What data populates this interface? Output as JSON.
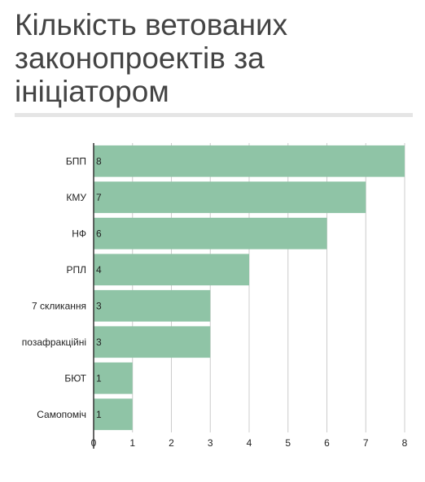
{
  "chart_data": {
    "type": "bar",
    "orientation": "horizontal",
    "title": "Кількість ветованих законопроектів за ініціатором",
    "categories": [
      "БПП",
      "КМУ",
      "НФ",
      "РПЛ",
      "7 скликання",
      "позафракційні",
      "БЮТ",
      "Самопоміч"
    ],
    "values": [
      8,
      7,
      6,
      4,
      3,
      3,
      1,
      1
    ],
    "xlim": [
      0,
      8
    ],
    "x_ticks": [
      "0",
      "1",
      "2",
      "3",
      "4",
      "5",
      "6",
      "7",
      "8"
    ],
    "grid": true,
    "data_labels": true,
    "bar_color": "#8fc4a6",
    "grid_color": "#cccccc",
    "axis_color": "#333333"
  }
}
